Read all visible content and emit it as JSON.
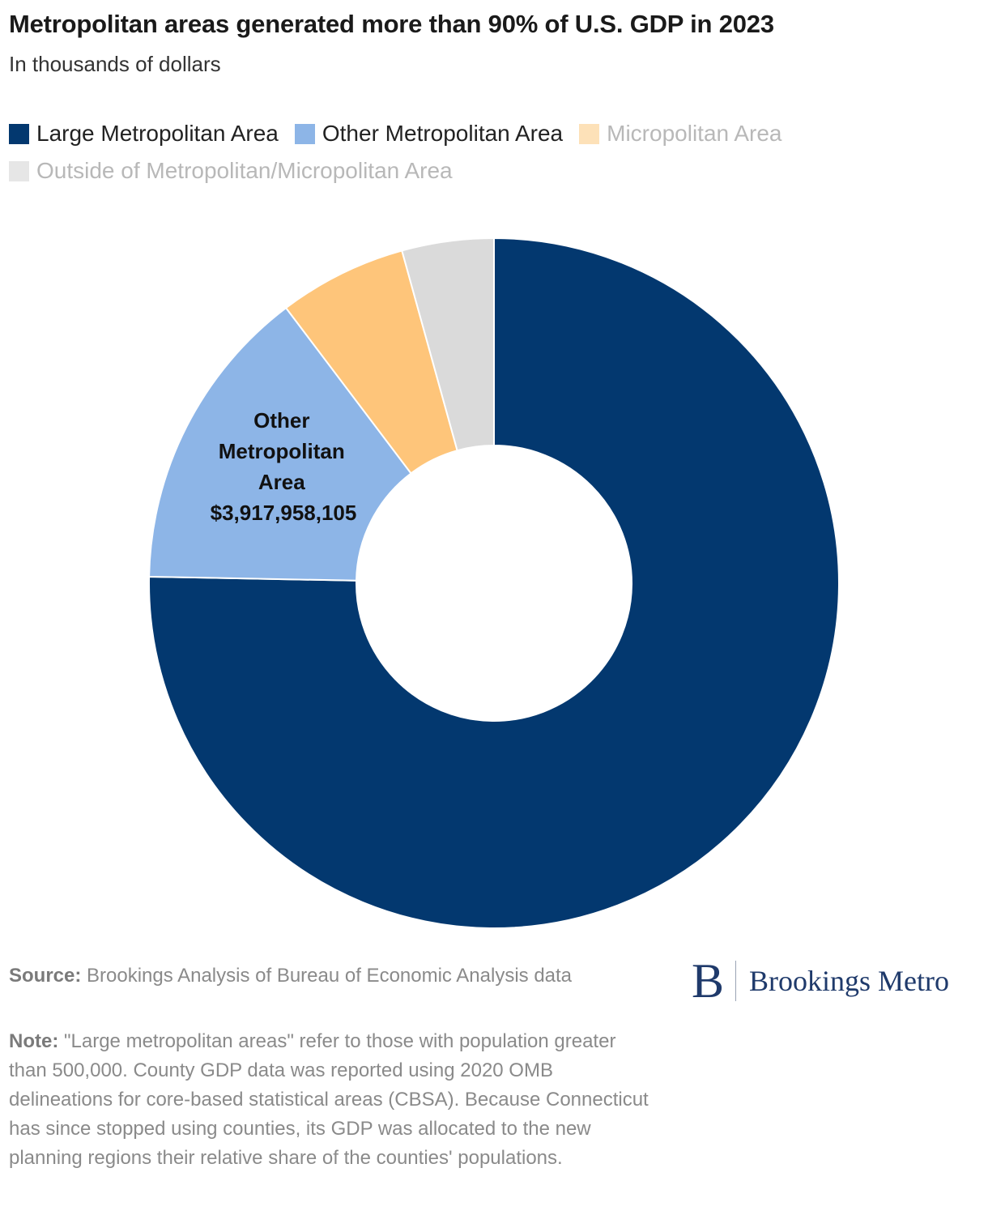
{
  "header": {
    "title": "Metropolitan areas generated more than 90% of U.S. GDP in 2023",
    "subtitle": "In thousands of dollars"
  },
  "legend": {
    "items": [
      {
        "label": "Large Metropolitan Area",
        "color": "#03386f",
        "state": "active"
      },
      {
        "label": "Other Metropolitan Area",
        "color": "#8db5e7",
        "state": "active"
      },
      {
        "label": "Micropolitan Area",
        "color": "#fde1b8",
        "state": "muted"
      },
      {
        "label": "Outside of Metropolitan/Micropolitan Area",
        "color": "#e6e6e6",
        "state": "muted"
      }
    ]
  },
  "chart_data": {
    "type": "pie",
    "donut": true,
    "title": "Metropolitan areas generated more than 90% of U.S. GDP in 2023",
    "subtitle": "In thousands of dollars",
    "legend_position": "top",
    "slices": [
      {
        "name": "Large Metropolitan Area",
        "share_percent": 75.3,
        "color": "#03386f"
      },
      {
        "name": "Other Metropolitan Area",
        "share_percent": 14.4,
        "value": "$3,917,958,105",
        "color": "#8db5e7"
      },
      {
        "name": "Micropolitan Area",
        "share_percent": 6.0,
        "color": "#fec57a"
      },
      {
        "name": "Outside of Metropolitan/Micropolitan Area",
        "share_percent": 4.3,
        "color": "#dadada"
      }
    ],
    "annotations": [
      {
        "slice": "Other Metropolitan Area",
        "lines": [
          "Other",
          "Metropolitan",
          "Area",
          "$3,917,958,105"
        ]
      }
    ]
  },
  "footer": {
    "source_label": "Source:",
    "source_text": "Brookings Analysis of Bureau of Economic Analysis data",
    "note_label": "Note:",
    "note_text": "\"Large metropolitan areas\" refer to those with population greater than 500,000. County GDP data was reported using 2020 OMB delineations for core-based statistical areas (CBSA). Because Connecticut has since stopped using counties, its GDP was allocated to the new planning regions their relative share of the counties' populations."
  },
  "logo": {
    "mark": "B",
    "text": "Brookings Metro",
    "color": "#1f3a6b"
  }
}
